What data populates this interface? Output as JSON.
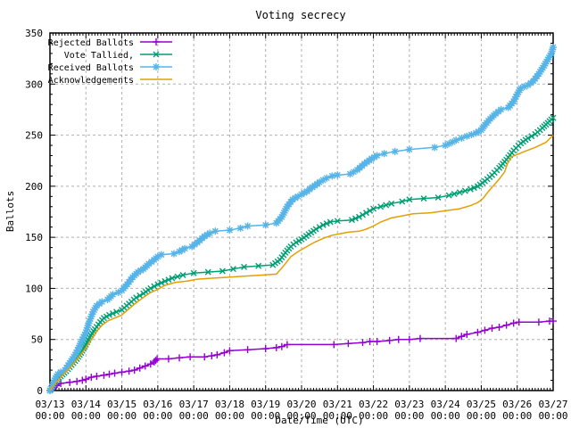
{
  "window": {
    "title": "Voting secrecy"
  },
  "colors": {
    "background": "#ffffff",
    "border": "#000000",
    "grid": "#b0b0b0",
    "text": "#000000",
    "rejected": "#9400d3",
    "tallied": "#009e73",
    "received": "#56b4e9",
    "acknowledgements": "#e69f00"
  },
  "chart_data": {
    "type": "line",
    "title": "Voting secrecy",
    "xlabel": "Date/Time (UTC)",
    "ylabel": "Ballots",
    "grid": true,
    "legend_position": "top-left",
    "ylim": [
      0,
      350
    ],
    "y_ticks": [
      0,
      50,
      100,
      150,
      200,
      250,
      300,
      350
    ],
    "x_range_days": [
      0,
      14
    ],
    "x_minor_per_day": 12,
    "y_minor_step": 10,
    "x_ticks": [
      {
        "date": "03/13",
        "time": "00:00"
      },
      {
        "date": "03/14",
        "time": "00:00"
      },
      {
        "date": "03/15",
        "time": "00:00"
      },
      {
        "date": "03/16",
        "time": "00:00"
      },
      {
        "date": "03/17",
        "time": "00:00"
      },
      {
        "date": "03/18",
        "time": "00:00"
      },
      {
        "date": "03/19",
        "time": "00:00"
      },
      {
        "date": "03/20",
        "time": "00:00"
      },
      {
        "date": "03/21",
        "time": "00:00"
      },
      {
        "date": "03/22",
        "time": "00:00"
      },
      {
        "date": "03/23",
        "time": "00:00"
      },
      {
        "date": "03/24",
        "time": "00:00"
      },
      {
        "date": "03/25",
        "time": "00:00"
      },
      {
        "date": "03/26",
        "time": "00:00"
      },
      {
        "date": "03/27",
        "time": "00:00"
      }
    ],
    "series": [
      {
        "name": "Rejected Ballots",
        "color": "#9400d3",
        "marker": "plus",
        "points": [
          [
            0,
            0
          ],
          [
            0.08,
            2
          ],
          [
            0.18,
            5
          ],
          [
            0.3,
            7
          ],
          [
            0.55,
            8
          ],
          [
            0.75,
            9
          ],
          [
            0.9,
            10
          ],
          [
            1.0,
            11
          ],
          [
            1.15,
            13
          ],
          [
            1.3,
            14
          ],
          [
            1.5,
            15
          ],
          [
            1.65,
            16
          ],
          [
            1.8,
            17
          ],
          [
            2.0,
            18
          ],
          [
            2.2,
            19
          ],
          [
            2.35,
            20
          ],
          [
            2.5,
            22
          ],
          [
            2.65,
            24
          ],
          [
            2.8,
            26
          ],
          [
            2.9,
            28
          ],
          [
            2.98,
            31
          ],
          [
            3.3,
            31
          ],
          [
            3.6,
            32
          ],
          [
            3.9,
            33
          ],
          [
            4.3,
            33
          ],
          [
            4.5,
            34
          ],
          [
            4.65,
            35
          ],
          [
            4.85,
            37
          ],
          [
            5.0,
            39
          ],
          [
            5.5,
            40
          ],
          [
            6.0,
            41
          ],
          [
            6.3,
            42
          ],
          [
            6.45,
            43
          ],
          [
            6.6,
            45
          ],
          [
            7.9,
            45
          ],
          [
            8.3,
            46
          ],
          [
            8.7,
            47
          ],
          [
            8.9,
            48
          ],
          [
            9.1,
            48
          ],
          [
            9.45,
            49
          ],
          [
            9.7,
            50
          ],
          [
            10.0,
            50
          ],
          [
            10.3,
            51
          ],
          [
            11.3,
            51
          ],
          [
            11.45,
            53
          ],
          [
            11.6,
            55
          ],
          [
            11.9,
            57
          ],
          [
            12.1,
            59
          ],
          [
            12.3,
            61
          ],
          [
            12.5,
            62
          ],
          [
            12.7,
            64
          ],
          [
            12.9,
            66
          ],
          [
            13.05,
            67
          ],
          [
            13.6,
            67
          ],
          [
            13.9,
            68
          ],
          [
            14.0,
            68
          ]
        ]
      },
      {
        "name": "Vote Tallied,",
        "color": "#009e73",
        "marker": "cross",
        "points": [
          [
            0,
            0
          ],
          [
            0.1,
            6
          ],
          [
            0.2,
            11
          ],
          [
            0.3,
            14
          ],
          [
            0.45,
            19
          ],
          [
            0.6,
            25
          ],
          [
            0.75,
            31
          ],
          [
            0.9,
            39
          ],
          [
            1.0,
            45
          ],
          [
            1.1,
            52
          ],
          [
            1.25,
            60
          ],
          [
            1.4,
            67
          ],
          [
            1.5,
            71
          ],
          [
            1.65,
            74
          ],
          [
            1.85,
            77
          ],
          [
            2.0,
            79
          ],
          [
            2.2,
            85
          ],
          [
            2.4,
            91
          ],
          [
            2.6,
            95
          ],
          [
            2.8,
            100
          ],
          [
            3.0,
            104
          ],
          [
            3.2,
            107
          ],
          [
            3.4,
            110
          ],
          [
            3.7,
            113
          ],
          [
            4.0,
            115
          ],
          [
            4.4,
            116
          ],
          [
            4.8,
            117
          ],
          [
            5.1,
            119
          ],
          [
            5.4,
            121
          ],
          [
            5.8,
            122
          ],
          [
            6.2,
            123
          ],
          [
            6.4,
            128
          ],
          [
            6.55,
            135
          ],
          [
            6.7,
            141
          ],
          [
            6.85,
            145
          ],
          [
            7.0,
            148
          ],
          [
            7.2,
            153
          ],
          [
            7.4,
            158
          ],
          [
            7.6,
            162
          ],
          [
            7.8,
            165
          ],
          [
            8.0,
            166
          ],
          [
            8.4,
            167
          ],
          [
            8.6,
            170
          ],
          [
            8.8,
            174
          ],
          [
            9.0,
            178
          ],
          [
            9.2,
            180
          ],
          [
            9.5,
            183
          ],
          [
            9.8,
            185
          ],
          [
            10.0,
            187
          ],
          [
            10.4,
            188
          ],
          [
            10.8,
            189
          ],
          [
            11.1,
            191
          ],
          [
            11.4,
            194
          ],
          [
            11.7,
            197
          ],
          [
            11.9,
            200
          ],
          [
            12.1,
            205
          ],
          [
            12.3,
            211
          ],
          [
            12.5,
            218
          ],
          [
            12.7,
            226
          ],
          [
            12.9,
            235
          ],
          [
            13.1,
            242
          ],
          [
            13.3,
            247
          ],
          [
            13.5,
            251
          ],
          [
            13.7,
            257
          ],
          [
            13.85,
            262
          ],
          [
            14.0,
            267
          ]
        ]
      },
      {
        "name": "Received Ballots",
        "color": "#56b4e9",
        "marker": "star",
        "points": [
          [
            0,
            0
          ],
          [
            0.08,
            6
          ],
          [
            0.15,
            12
          ],
          [
            0.22,
            16
          ],
          [
            0.3,
            18
          ],
          [
            0.42,
            20
          ],
          [
            0.55,
            27
          ],
          [
            0.7,
            35
          ],
          [
            0.8,
            42
          ],
          [
            0.9,
            50
          ],
          [
            1.0,
            57
          ],
          [
            1.1,
            68
          ],
          [
            1.2,
            77
          ],
          [
            1.3,
            83
          ],
          [
            1.45,
            87
          ],
          [
            1.6,
            89
          ],
          [
            1.75,
            94
          ],
          [
            1.9,
            96
          ],
          [
            2.0,
            98
          ],
          [
            2.15,
            104
          ],
          [
            2.3,
            111
          ],
          [
            2.45,
            116
          ],
          [
            2.6,
            119
          ],
          [
            2.75,
            124
          ],
          [
            2.9,
            128
          ],
          [
            3.0,
            131
          ],
          [
            3.1,
            133
          ],
          [
            3.45,
            134
          ],
          [
            3.6,
            136
          ],
          [
            3.75,
            139
          ],
          [
            3.95,
            141
          ],
          [
            4.1,
            145
          ],
          [
            4.3,
            151
          ],
          [
            4.45,
            154
          ],
          [
            4.6,
            156
          ],
          [
            5.0,
            157
          ],
          [
            5.3,
            159
          ],
          [
            5.5,
            161
          ],
          [
            6.0,
            162
          ],
          [
            6.3,
            164
          ],
          [
            6.45,
            170
          ],
          [
            6.6,
            180
          ],
          [
            6.75,
            187
          ],
          [
            6.9,
            190
          ],
          [
            7.0,
            192
          ],
          [
            7.15,
            195
          ],
          [
            7.3,
            199
          ],
          [
            7.5,
            204
          ],
          [
            7.7,
            208
          ],
          [
            7.85,
            210
          ],
          [
            8.0,
            211
          ],
          [
            8.35,
            212
          ],
          [
            8.55,
            216
          ],
          [
            8.75,
            222
          ],
          [
            8.95,
            227
          ],
          [
            9.1,
            230
          ],
          [
            9.3,
            232
          ],
          [
            9.6,
            234
          ],
          [
            10.0,
            236
          ],
          [
            10.7,
            238
          ],
          [
            11.0,
            240
          ],
          [
            11.3,
            245
          ],
          [
            11.6,
            249
          ],
          [
            11.85,
            252
          ],
          [
            12.0,
            255
          ],
          [
            12.1,
            260
          ],
          [
            12.25,
            266
          ],
          [
            12.4,
            271
          ],
          [
            12.55,
            275
          ],
          [
            12.75,
            277
          ],
          [
            12.9,
            283
          ],
          [
            13.0,
            290
          ],
          [
            13.1,
            296
          ],
          [
            13.3,
            299
          ],
          [
            13.45,
            303
          ],
          [
            13.6,
            310
          ],
          [
            13.75,
            318
          ],
          [
            13.85,
            324
          ],
          [
            13.95,
            330
          ],
          [
            14.0,
            336
          ]
        ]
      },
      {
        "name": "Acknowledgements",
        "color": "#e69f00",
        "marker": "none",
        "points": [
          [
            0,
            0
          ],
          [
            0.1,
            5
          ],
          [
            0.25,
            11
          ],
          [
            0.4,
            17
          ],
          [
            0.55,
            22
          ],
          [
            0.7,
            28
          ],
          [
            0.85,
            35
          ],
          [
            1.0,
            42
          ],
          [
            1.15,
            50
          ],
          [
            1.3,
            58
          ],
          [
            1.45,
            64
          ],
          [
            1.6,
            68
          ],
          [
            1.8,
            71
          ],
          [
            2.0,
            74
          ],
          [
            2.2,
            80
          ],
          [
            2.4,
            86
          ],
          [
            2.6,
            91
          ],
          [
            2.8,
            96
          ],
          [
            3.0,
            99
          ],
          [
            3.2,
            103
          ],
          [
            3.5,
            106
          ],
          [
            3.8,
            107
          ],
          [
            4.1,
            109
          ],
          [
            4.5,
            110
          ],
          [
            5.0,
            111
          ],
          [
            5.4,
            112
          ],
          [
            5.9,
            113
          ],
          [
            6.3,
            114
          ],
          [
            6.5,
            122
          ],
          [
            6.7,
            131
          ],
          [
            6.9,
            136
          ],
          [
            7.1,
            140
          ],
          [
            7.35,
            145
          ],
          [
            7.6,
            149
          ],
          [
            7.85,
            152
          ],
          [
            8.0,
            153
          ],
          [
            8.3,
            155
          ],
          [
            8.6,
            156
          ],
          [
            8.8,
            158
          ],
          [
            9.0,
            161
          ],
          [
            9.2,
            165
          ],
          [
            9.5,
            169
          ],
          [
            9.8,
            171
          ],
          [
            10.1,
            173
          ],
          [
            10.6,
            174
          ],
          [
            11.0,
            176
          ],
          [
            11.4,
            178
          ],
          [
            11.7,
            181
          ],
          [
            11.9,
            184
          ],
          [
            12.05,
            188
          ],
          [
            12.2,
            195
          ],
          [
            12.35,
            201
          ],
          [
            12.5,
            207
          ],
          [
            12.65,
            214
          ],
          [
            12.75,
            224
          ],
          [
            12.85,
            229
          ],
          [
            13.0,
            231
          ],
          [
            13.2,
            234
          ],
          [
            13.5,
            238
          ],
          [
            13.8,
            243
          ],
          [
            14.0,
            250
          ]
        ]
      }
    ]
  }
}
